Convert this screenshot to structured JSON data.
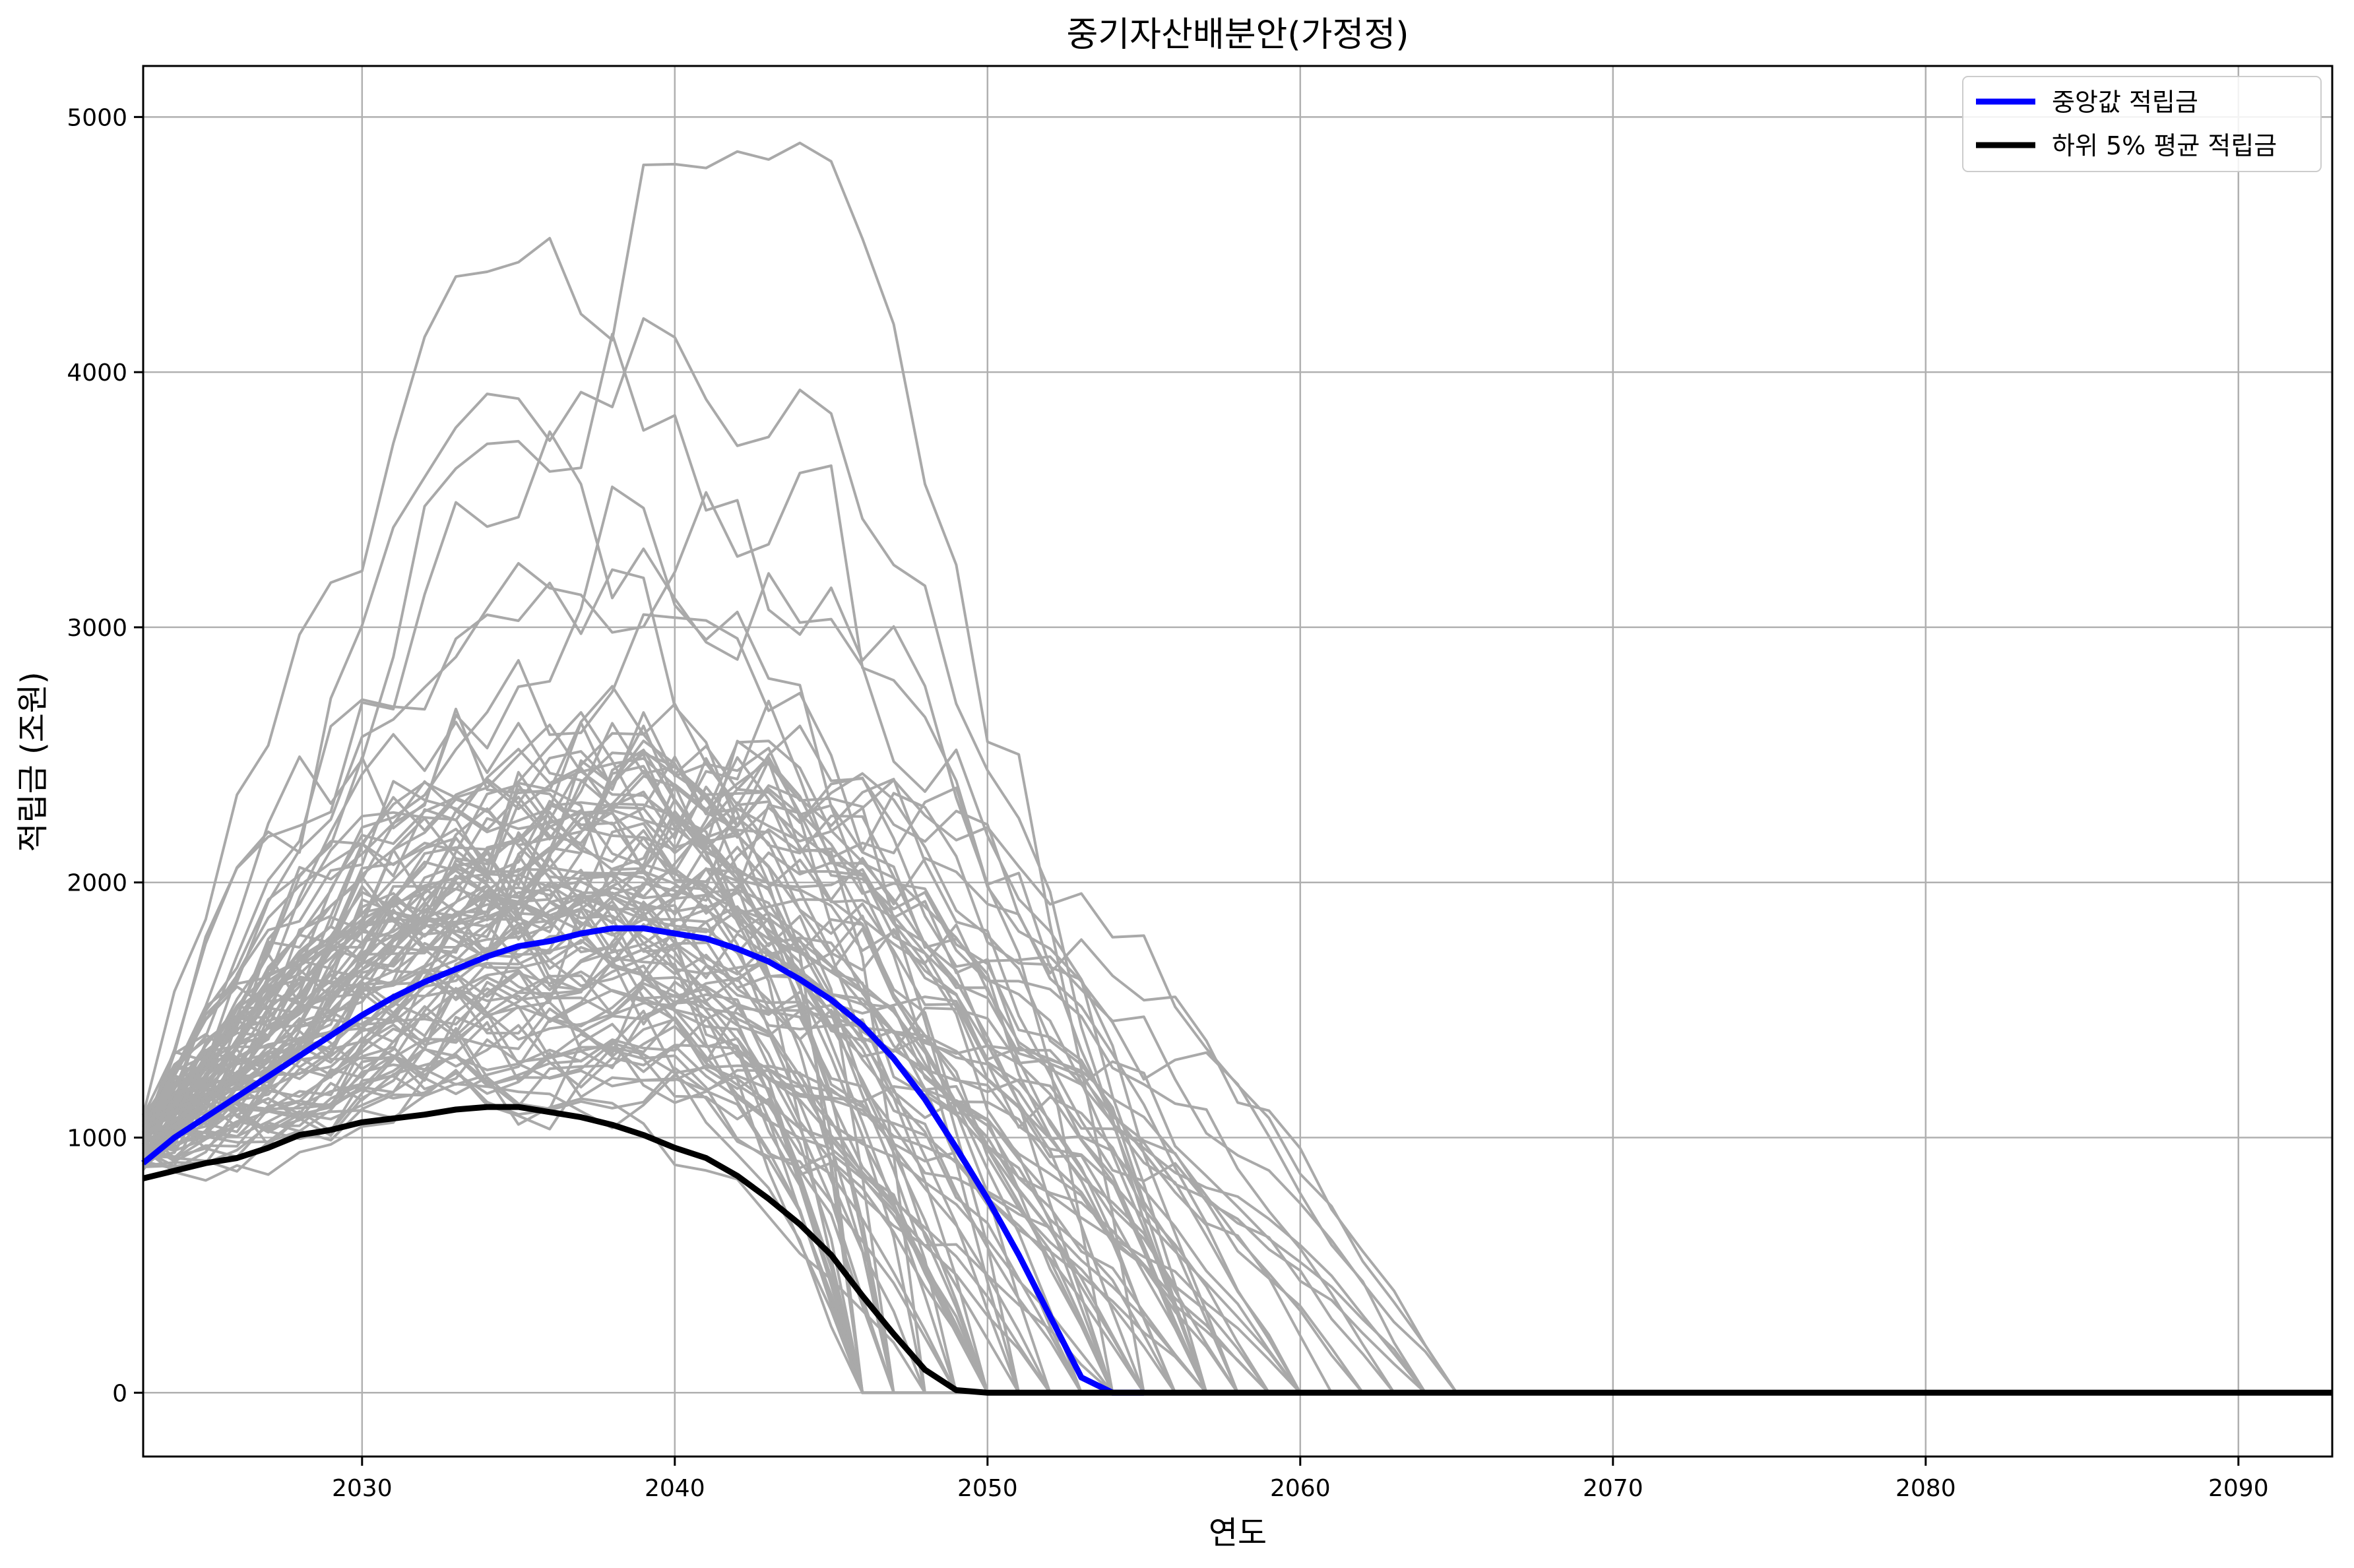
{
  "chart_data": {
    "type": "line",
    "title": "중기자산배분안(가정정)",
    "xlabel": "연도",
    "ylabel": "적립금 (조원)",
    "xlim": [
      2023,
      2093
    ],
    "ylim": [
      -250,
      5200
    ],
    "xticks": [
      2030,
      2040,
      2050,
      2060,
      2070,
      2080,
      2090
    ],
    "yticks": [
      0,
      1000,
      2000,
      3000,
      4000,
      5000
    ],
    "grid": true,
    "legend_position": "top-right",
    "colors": {
      "median": "#0000ff",
      "lower5": "#000000",
      "simulation": "#a9a9a9",
      "grid": "#b0b0b0"
    },
    "series": [
      {
        "name": "중앙값 적립금",
        "color": "#0000ff",
        "x": [
          2023,
          2024,
          2025,
          2026,
          2027,
          2028,
          2029,
          2030,
          2031,
          2032,
          2033,
          2034,
          2035,
          2036,
          2037,
          2038,
          2039,
          2040,
          2041,
          2042,
          2043,
          2044,
          2045,
          2046,
          2047,
          2048,
          2049,
          2050,
          2051,
          2052,
          2053,
          2054,
          2055
        ],
        "values": [
          900,
          1000,
          1080,
          1160,
          1240,
          1320,
          1400,
          1480,
          1550,
          1610,
          1660,
          1710,
          1750,
          1770,
          1800,
          1820,
          1820,
          1800,
          1780,
          1740,
          1690,
          1620,
          1540,
          1440,
          1310,
          1150,
          960,
          760,
          540,
          300,
          60,
          0,
          0
        ]
      },
      {
        "name": "하위 5% 평균 적립금",
        "color": "#000000",
        "x": [
          2023,
          2024,
          2025,
          2026,
          2027,
          2028,
          2029,
          2030,
          2031,
          2032,
          2033,
          2034,
          2035,
          2036,
          2037,
          2038,
          2039,
          2040,
          2041,
          2042,
          2043,
          2044,
          2045,
          2046,
          2047,
          2048,
          2049,
          2050,
          2093
        ],
        "values": [
          840,
          870,
          900,
          920,
          960,
          1010,
          1030,
          1060,
          1075,
          1090,
          1110,
          1120,
          1120,
          1100,
          1080,
          1050,
          1010,
          960,
          920,
          850,
          760,
          660,
          540,
          380,
          230,
          90,
          10,
          0,
          0
        ]
      }
    ],
    "simulation_paths": {
      "color": "#a9a9a9",
      "start_year": 2023,
      "end_year": 2093,
      "count": 100,
      "example_peaks": [
        4940,
        4020,
        3760,
        3480,
        3290,
        3240,
        3100,
        2880,
        2750,
        2600,
        2450,
        2300,
        2200,
        2100,
        1950
      ]
    }
  }
}
